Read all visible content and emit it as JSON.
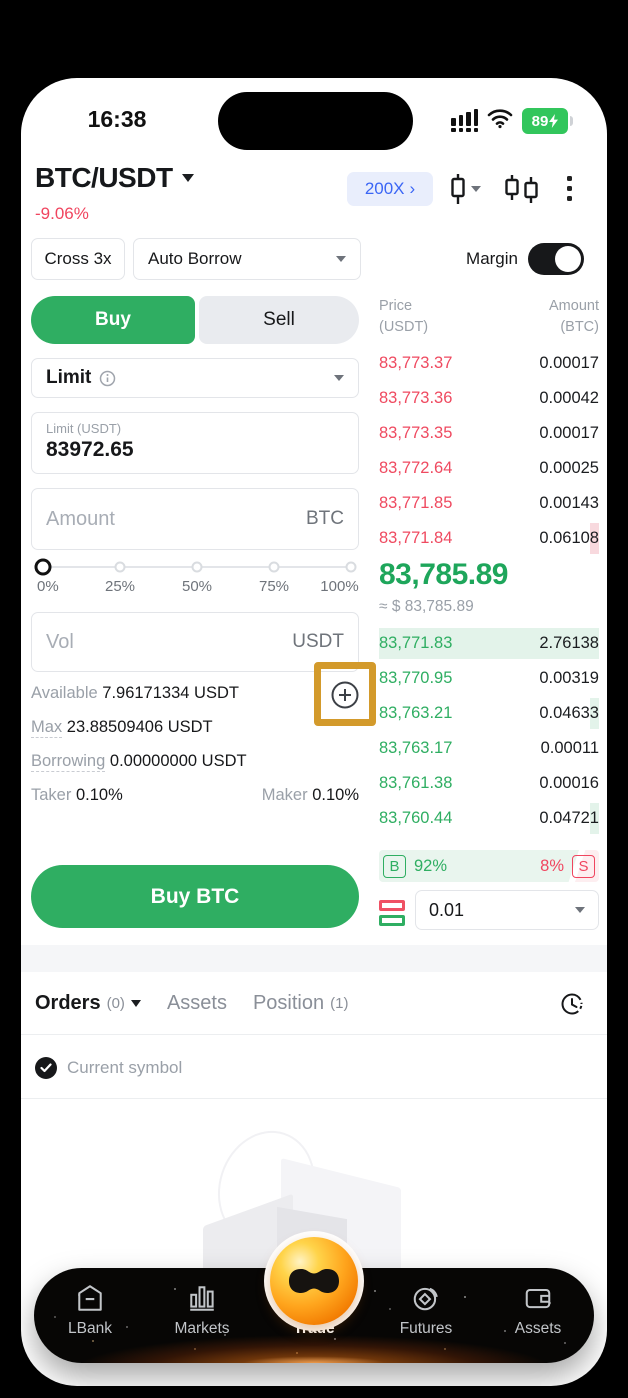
{
  "status_bar": {
    "time": "16:38",
    "battery_level": "89"
  },
  "header": {
    "pair": "BTC/USDT",
    "change": "-9.06%",
    "leverage": "200X",
    "leverage_arrow": "›"
  },
  "margin_row": {
    "cross": "Cross 3x",
    "borrow_mode": "Auto Borrow",
    "margin_label": "Margin"
  },
  "order_form": {
    "buy_tab": "Buy",
    "sell_tab": "Sell",
    "order_type": "Limit",
    "price_label": "Limit (USDT)",
    "price_value": "83972.65",
    "amount_placeholder": "Amount",
    "amount_unit": "BTC",
    "slider_labels": [
      "0%",
      "25%",
      "50%",
      "75%",
      "100%"
    ],
    "vol_placeholder": "Vol",
    "vol_unit": "USDT",
    "available_label": "Available",
    "available_value": "7.96171334 USDT",
    "max_label": "Max",
    "max_value": "23.88509406 USDT",
    "borrowing_label": "Borrowing",
    "borrowing_value": "0.00000000 USDT",
    "taker_label": "Taker",
    "taker_value": "0.10%",
    "maker_label": "Maker",
    "maker_value": "0.10%",
    "submit_label": "Buy BTC"
  },
  "order_book": {
    "price_header": "Price",
    "price_header_unit": "(USDT)",
    "amount_header": "Amount",
    "amount_header_unit": "(BTC)",
    "asks": [
      {
        "price": "83,773.37",
        "amount": "0.00017",
        "depth": 0
      },
      {
        "price": "83,773.36",
        "amount": "0.00042",
        "depth": 0
      },
      {
        "price": "83,773.35",
        "amount": "0.00017",
        "depth": 0
      },
      {
        "price": "83,772.64",
        "amount": "0.00025",
        "depth": 0
      },
      {
        "price": "83,771.85",
        "amount": "0.00143",
        "depth": 0
      },
      {
        "price": "83,771.84",
        "amount": "0.06108",
        "depth": 4
      }
    ],
    "last_price": "83,785.89",
    "approx": "≈ $ 83,785.89",
    "bids": [
      {
        "price": "83,771.83",
        "amount": "2.76138",
        "depth": 100
      },
      {
        "price": "83,770.95",
        "amount": "0.00319",
        "depth": 0
      },
      {
        "price": "83,763.21",
        "amount": "0.04633",
        "depth": 4
      },
      {
        "price": "83,763.17",
        "amount": "0.00011",
        "depth": 0
      },
      {
        "price": "83,761.38",
        "amount": "0.00016",
        "depth": 0
      },
      {
        "price": "83,760.44",
        "amount": "0.04721",
        "depth": 4
      }
    ],
    "buy_marker": "B",
    "buy_pct": "92%",
    "sell_pct": "8%",
    "sell_marker": "S",
    "precision": "0.01"
  },
  "positions_panel": {
    "orders_label": "Orders",
    "orders_count": "(0)",
    "assets_label": "Assets",
    "position_label": "Position",
    "position_count": "(1)",
    "filter_label": "Current symbol"
  },
  "bottom_nav": {
    "items": [
      {
        "label": "LBank"
      },
      {
        "label": "Markets"
      },
      {
        "label": "Trade",
        "active": true
      },
      {
        "label": "Futures"
      },
      {
        "label": "Assets"
      }
    ]
  },
  "colors": {
    "green": "#2fae62",
    "red": "#f0455f",
    "blue": "#3b66f5",
    "highlight_gold": "#d39a2b",
    "battery_green": "#32c65c"
  }
}
